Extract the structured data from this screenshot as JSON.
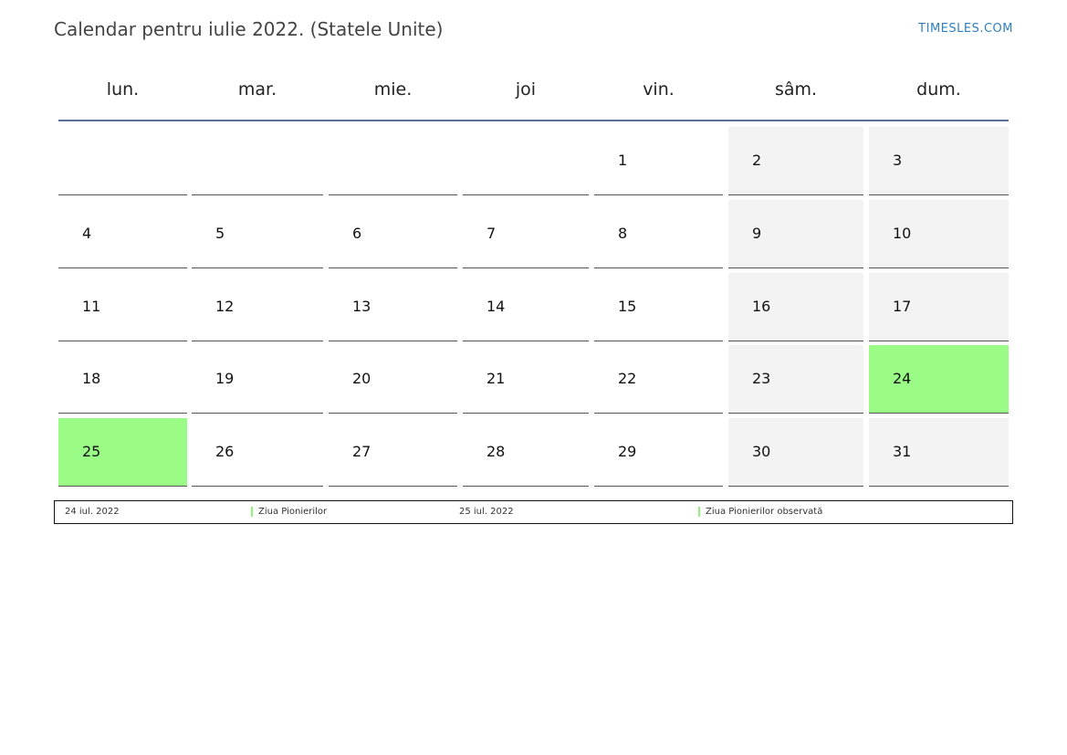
{
  "header": {
    "title": "Calendar pentru iulie 2022. (Statele Unite)",
    "site": "TIMESLES.COM"
  },
  "weekdays": [
    "lun.",
    "mar.",
    "mie.",
    "joi",
    "vin.",
    "sâm.",
    "dum."
  ],
  "weeks": [
    [
      "",
      "",
      "",
      "",
      "1",
      "2",
      "3"
    ],
    [
      "4",
      "5",
      "6",
      "7",
      "8",
      "9",
      "10"
    ],
    [
      "11",
      "12",
      "13",
      "14",
      "15",
      "16",
      "17"
    ],
    [
      "18",
      "19",
      "20",
      "21",
      "22",
      "23",
      "24"
    ],
    [
      "25",
      "26",
      "27",
      "28",
      "29",
      "30",
      "31"
    ]
  ],
  "holidays": [
    "24",
    "25"
  ],
  "colors": {
    "holiday": "#9bfb87",
    "weekend": "#f3f3f3",
    "header_rule": "#5a7294",
    "site_link": "#2f7fc0"
  },
  "legend": [
    {
      "date": "24 iul. 2022",
      "name": "Ziua Pionierilor"
    },
    {
      "date": "25 iul. 2022",
      "name": "Ziua Pionierilor observată"
    }
  ]
}
